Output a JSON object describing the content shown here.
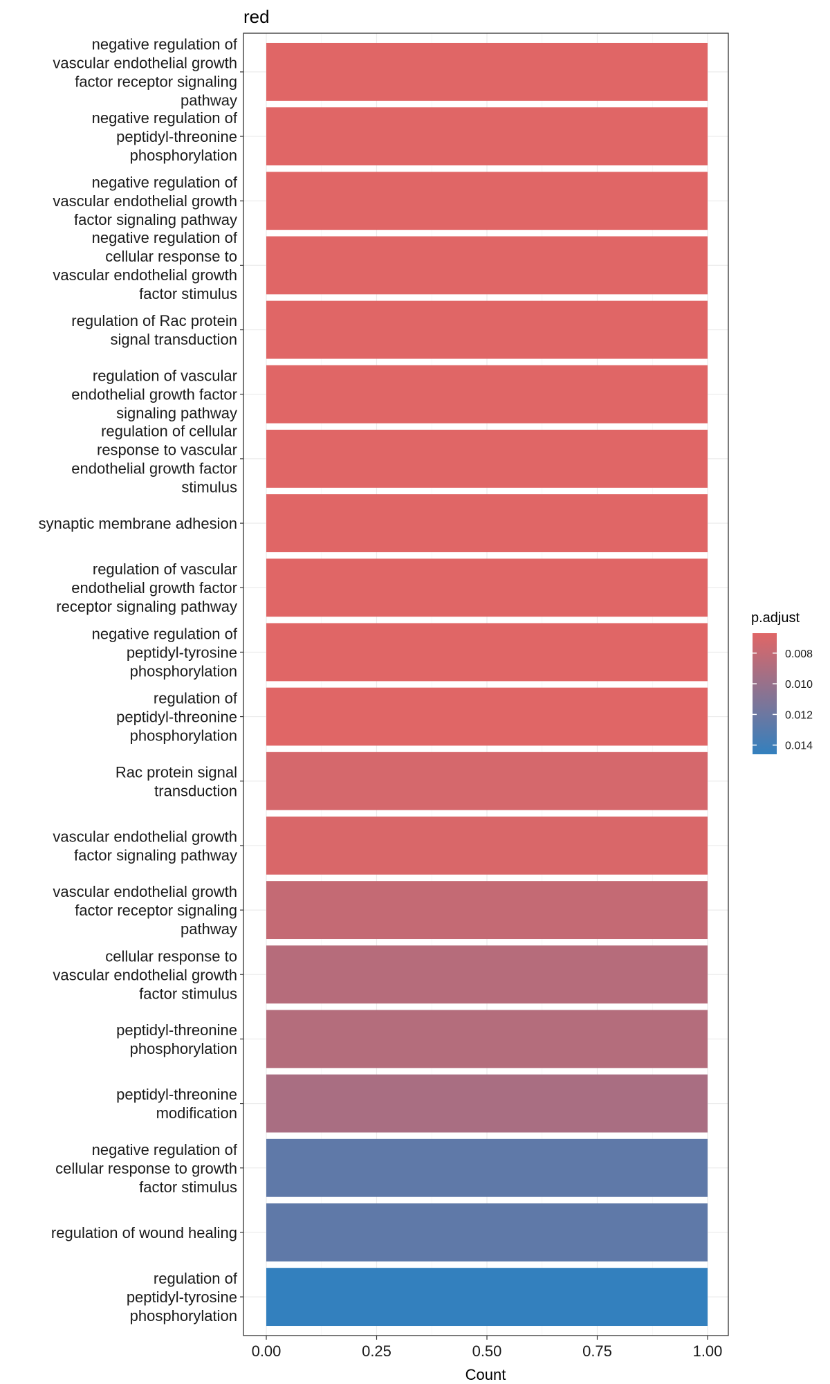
{
  "chart_data": {
    "type": "bar",
    "orientation": "horizontal",
    "title": "red",
    "xlabel": "Count",
    "ylabel": "",
    "xlim": [
      0,
      1.05
    ],
    "x_ticks": [
      "0.00",
      "0.25",
      "0.50",
      "0.75",
      "1.00"
    ],
    "x_tick_values": [
      0,
      0.25,
      0.5,
      0.75,
      1.0
    ],
    "grid": true,
    "categories": [
      {
        "label": [
          "negative regulation of",
          "vascular endothelial growth",
          "factor receptor signaling",
          "pathway"
        ],
        "count": 1,
        "p_adjust": 0.0067
      },
      {
        "label": [
          "negative regulation of",
          "peptidyl-threonine",
          "phosphorylation"
        ],
        "count": 1,
        "p_adjust": 0.0067
      },
      {
        "label": [
          "negative regulation of",
          "vascular endothelial growth",
          "factor signaling pathway"
        ],
        "count": 1,
        "p_adjust": 0.0067
      },
      {
        "label": [
          "negative regulation of",
          "cellular response to",
          "vascular endothelial growth",
          "factor stimulus"
        ],
        "count": 1,
        "p_adjust": 0.0067
      },
      {
        "label": [
          "regulation of Rac protein",
          "signal transduction"
        ],
        "count": 1,
        "p_adjust": 0.0067
      },
      {
        "label": [
          "regulation of vascular",
          "endothelial growth factor",
          "signaling pathway"
        ],
        "count": 1,
        "p_adjust": 0.0067
      },
      {
        "label": [
          "regulation of cellular",
          "response to vascular",
          "endothelial growth factor",
          "stimulus"
        ],
        "count": 1,
        "p_adjust": 0.0067
      },
      {
        "label": [
          "synaptic membrane adhesion"
        ],
        "count": 1,
        "p_adjust": 0.0067
      },
      {
        "label": [
          "regulation of vascular",
          "endothelial growth factor",
          "receptor signaling pathway"
        ],
        "count": 1,
        "p_adjust": 0.0067
      },
      {
        "label": [
          "negative regulation of",
          "peptidyl-tyrosine",
          "phosphorylation"
        ],
        "count": 1,
        "p_adjust": 0.0067
      },
      {
        "label": [
          "regulation of",
          "peptidyl-threonine",
          "phosphorylation"
        ],
        "count": 1,
        "p_adjust": 0.0067
      },
      {
        "label": [
          "Rac protein signal",
          "transduction"
        ],
        "count": 1,
        "p_adjust": 0.0072
      },
      {
        "label": [
          "vascular endothelial growth",
          "factor signaling pathway"
        ],
        "count": 1,
        "p_adjust": 0.007
      },
      {
        "label": [
          "vascular endothelial growth",
          "factor receptor signaling",
          "pathway"
        ],
        "count": 1,
        "p_adjust": 0.008
      },
      {
        "label": [
          "cellular response to",
          "vascular endothelial growth",
          "factor stimulus"
        ],
        "count": 1,
        "p_adjust": 0.0086
      },
      {
        "label": [
          "peptidyl-threonine",
          "phosphorylation"
        ],
        "count": 1,
        "p_adjust": 0.0087
      },
      {
        "label": [
          "peptidyl-threonine",
          "modification"
        ],
        "count": 1,
        "p_adjust": 0.0092
      },
      {
        "label": [
          "negative regulation of",
          "cellular response to growth",
          "factor stimulus"
        ],
        "count": 1,
        "p_adjust": 0.0126
      },
      {
        "label": [
          "regulation of wound healing"
        ],
        "count": 1,
        "p_adjust": 0.0126
      },
      {
        "label": [
          "regulation of",
          "peptidyl-tyrosine",
          "phosphorylation"
        ],
        "count": 1,
        "p_adjust": 0.0146
      }
    ],
    "legend": {
      "title": "p.adjust",
      "placement": "right",
      "ticks": [
        "0.008",
        "0.010",
        "0.012",
        "0.014"
      ],
      "tick_values": [
        0.008,
        0.01,
        0.012,
        0.014
      ],
      "range": [
        0.0067,
        0.0146
      ],
      "low_color": "#E06666",
      "high_color": "#3380BE"
    }
  }
}
